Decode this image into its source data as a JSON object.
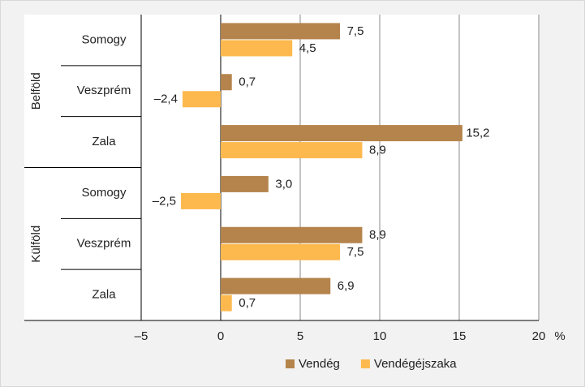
{
  "chart_data": {
    "type": "bar",
    "orientation": "horizontal",
    "groups": [
      {
        "name": "Belföld",
        "categories": [
          "Somogy",
          "Veszprém",
          "Zala"
        ]
      },
      {
        "name": "Külföld",
        "categories": [
          "Somogy",
          "Veszprém",
          "Zala"
        ]
      }
    ],
    "series": [
      {
        "name": "Vendég",
        "color": "#b5844c",
        "values": [
          7.5,
          0.7,
          15.2,
          3.0,
          8.9,
          6.9
        ],
        "value_labels": [
          "7,5",
          "0,7",
          "15,2",
          "3,0",
          "8,9",
          "6,9"
        ]
      },
      {
        "name": "Vendégéjszaka",
        "color": "#fdb94e",
        "values": [
          4.5,
          -2.4,
          8.9,
          -2.5,
          7.5,
          0.7
        ],
        "value_labels": [
          "4,5",
          "–2,4",
          "8,9",
          "–2,5",
          "7,5",
          "0,7"
        ]
      }
    ],
    "xlim": [
      -5,
      20
    ],
    "xticks": [
      {
        "value": -5,
        "label": "–5"
      },
      0,
      5,
      10,
      15,
      20
    ],
    "x_unit": "%",
    "grid": true,
    "legend": "bottom"
  }
}
